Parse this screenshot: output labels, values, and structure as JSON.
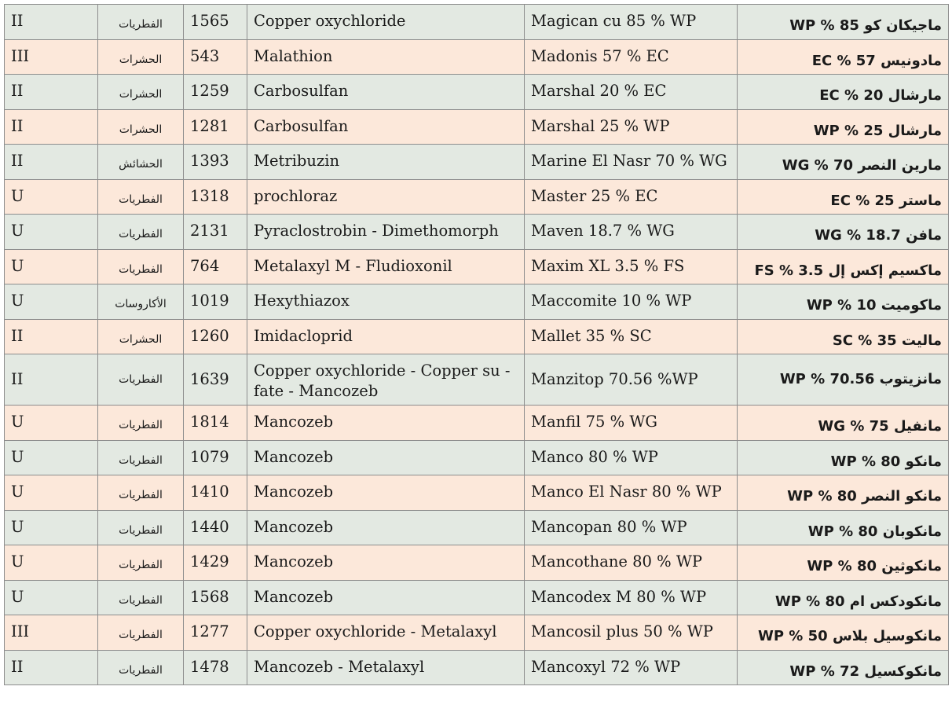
{
  "rows": [
    {
      "cls": "II",
      "cat": "الفطريات",
      "reg": "1565",
      "ai": "Copper oxychloride",
      "trade": "Magican cu 85 % WP",
      "ar": "ماجيكان كو 85 % WP"
    },
    {
      "cls": "III",
      "cat": "الحشرات",
      "reg": "543",
      "ai": "Malathion",
      "trade": "Madonis 57 % EC",
      "ar": "مادونيس 57 % EC"
    },
    {
      "cls": "II",
      "cat": "الحشرات",
      "reg": "1259",
      "ai": "Carbosulfan",
      "trade": "Marshal 20 % EC",
      "ar": "مارشال 20 % EC"
    },
    {
      "cls": "II",
      "cat": "الحشرات",
      "reg": "1281",
      "ai": "Carbosulfan",
      "trade": "Marshal 25 % WP",
      "ar": "مارشال 25 % WP"
    },
    {
      "cls": "II",
      "cat": "الحشائش",
      "reg": "1393",
      "ai": "Metribuzin",
      "trade": "Marine El Nasr 70 % WG",
      "ar": "مارين النصر 70 % WG"
    },
    {
      "cls": "U",
      "cat": "الفطريات",
      "reg": "1318",
      "ai": "prochloraz",
      "trade": "Master 25 % EC",
      "ar": "ماستر 25 % EC"
    },
    {
      "cls": "U",
      "cat": "الفطريات",
      "reg": "2131",
      "ai": "Pyraclostrobin  - Dimethomorph",
      "trade": "Maven 18.7 % WG",
      "ar": "مافن 18.7 % WG"
    },
    {
      "cls": "U",
      "cat": "الفطريات",
      "reg": "764",
      "ai": "Metalaxyl M  - Fludioxonil",
      "trade": "Maxim XL 3.5 % FS",
      "ar": "ماكسيم إكس إل 3.5 % FS"
    },
    {
      "cls": "U",
      "cat": "الأكاروسات",
      "reg": "1019",
      "ai": "Hexythiazox",
      "trade": "Maccomite 10 % WP",
      "ar": "ماكوميت 10 % WP"
    },
    {
      "cls": "II",
      "cat": "الحشرات",
      "reg": "1260",
      "ai": "Imidacloprid",
      "trade": "Mallet 35 % SC",
      "ar": "ماليت 35 % SC"
    },
    {
      "cls": "II",
      "cat": "الفطريات",
      "reg": "1639",
      "ai": "Copper oxychloride  - Copper su - fate  - Mancozeb",
      "trade": "Manzitop 70.56 %WP",
      "ar": "مانزيتوب 70.56 % WP"
    },
    {
      "cls": "U",
      "cat": "الفطريات",
      "reg": "1814",
      "ai": "Mancozeb",
      "trade": "Manfil 75 % WG",
      "ar": "مانفيل 75 % WG"
    },
    {
      "cls": "U",
      "cat": "الفطريات",
      "reg": "1079",
      "ai": "Mancozeb",
      "trade": "Manco 80 % WP",
      "ar": "مانكو 80 % WP"
    },
    {
      "cls": "U",
      "cat": "الفطريات",
      "reg": "1410",
      "ai": "Mancozeb",
      "trade": "Manco El Nasr 80 % WP",
      "ar": "مانكو النصر 80 % WP"
    },
    {
      "cls": "U",
      "cat": "الفطريات",
      "reg": "1440",
      "ai": "Mancozeb",
      "trade": "Mancopan 80 % WP",
      "ar": "مانكوبان 80 % WP"
    },
    {
      "cls": "U",
      "cat": "الفطريات",
      "reg": "1429",
      "ai": "Mancozeb",
      "trade": "Mancothane 80 % WP",
      "ar": "مانكوثين 80 % WP"
    },
    {
      "cls": "U",
      "cat": "الفطريات",
      "reg": "1568",
      "ai": "Mancozeb",
      "trade": "Mancodex M 80 % WP",
      "ar": "مانكودكس ام 80 % WP"
    },
    {
      "cls": "III",
      "cat": "الفطريات",
      "reg": "1277",
      "ai": "Copper oxychloride  - Metalaxyl",
      "trade": "Mancosil plus 50 % WP",
      "ar": "مانكوسيل بلاس 50 % WP"
    },
    {
      "cls": "II",
      "cat": "الفطريات",
      "reg": "1478",
      "ai": "Mancozeb  - Metalaxyl",
      "trade": "Mancoxyl 72 % WP",
      "ar": "مانكوكسيل 72 % WP"
    }
  ]
}
